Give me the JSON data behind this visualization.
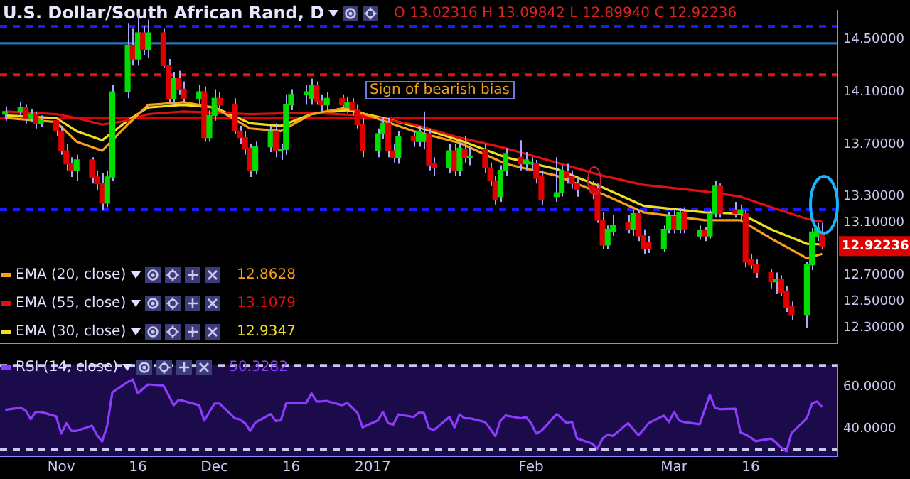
{
  "chart_data": [
    {
      "type": "candlestick",
      "title": "U.S. Dollar/South African Rand, D",
      "annotations": [
        "O 13.02316 H 13.09842 L 12.89940 C 12.92236",
        "Sign of bearish bias",
        "12.8628",
        "13.1079",
        "12.9347",
        {
          "text": "12.92236",
          "x": "2017-03-30",
          "y": 12.92236
        }
      ],
      "legend": "bottom left",
      "marker": "none",
      "tick_labels": "y",
      "x": [
        "2016-10-21",
        "2016-10-24",
        "2016-10-25",
        "2016-10-26",
        "2016-10-27",
        "2016-10-28",
        "2016-10-31",
        "2016-11-01",
        "2016-11-02",
        "2016-11-03",
        "2016-11-04",
        "2016-11-07",
        "2016-11-08",
        "2016-11-09",
        "2016-11-10",
        "2016-11-11",
        "2016-11-14",
        "2016-11-15",
        "2016-11-16",
        "2016-11-17",
        "2016-11-18",
        "2016-11-21",
        "2016-11-22",
        "2016-11-23",
        "2016-11-24",
        "2016-11-25",
        "2016-11-28",
        "2016-11-29",
        "2016-11-30",
        "2016-12-01",
        "2016-12-02",
        "2016-12-05",
        "2016-12-06",
        "2016-12-07",
        "2016-12-08",
        "2016-12-09",
        "2016-12-12",
        "2016-12-13",
        "2016-12-14",
        "2016-12-15",
        "2016-12-16",
        "2016-12-19",
        "2016-12-20",
        "2016-12-21",
        "2016-12-22",
        "2016-12-23",
        "2016-12-26",
        "2016-12-27",
        "2016-12-28",
        "2016-12-29",
        "2016-12-30",
        "2017-01-02",
        "2017-01-03",
        "2017-01-04",
        "2017-01-05",
        "2017-01-06",
        "2017-01-09",
        "2017-01-10",
        "2017-01-11",
        "2017-01-12",
        "2017-01-13",
        "2017-01-16",
        "2017-01-17",
        "2017-01-18",
        "2017-01-19",
        "2017-01-20",
        "2017-01-23",
        "2017-01-24",
        "2017-01-25",
        "2017-01-26",
        "2017-01-27",
        "2017-01-30",
        "2017-01-31",
        "2017-02-01",
        "2017-02-02",
        "2017-02-03",
        "2017-02-06",
        "2017-02-07",
        "2017-02-08",
        "2017-02-09",
        "2017-02-10",
        "2017-02-13",
        "2017-02-14",
        "2017-02-15",
        "2017-02-16",
        "2017-02-17",
        "2017-02-20",
        "2017-02-21",
        "2017-02-22",
        "2017-02-23",
        "2017-02-24",
        "2017-02-27",
        "2017-02-28",
        "2017-03-01",
        "2017-03-02",
        "2017-03-03",
        "2017-03-06",
        "2017-03-07",
        "2017-03-08",
        "2017-03-09",
        "2017-03-10",
        "2017-03-13",
        "2017-03-14",
        "2017-03-15",
        "2017-03-16",
        "2017-03-17",
        "2017-03-20",
        "2017-03-21",
        "2017-03-22",
        "2017-03-23",
        "2017-03-24",
        "2017-03-27",
        "2017-03-28",
        "2017-03-29",
        "2017-03-30"
      ],
      "ohlc": [
        [
          13.93,
          13.99,
          13.88,
          13.95
        ],
        [
          13.95,
          14.02,
          13.92,
          13.98
        ],
        [
          13.98,
          14.0,
          13.86,
          13.9
        ],
        [
          13.9,
          13.97,
          13.87,
          13.93
        ],
        [
          13.93,
          13.95,
          13.82,
          13.86
        ],
        [
          13.86,
          13.92,
          13.83,
          13.88
        ],
        [
          13.88,
          13.9,
          13.76,
          13.8
        ],
        [
          13.8,
          13.84,
          13.62,
          13.65
        ],
        [
          13.65,
          13.7,
          13.5,
          13.55
        ],
        [
          13.55,
          13.6,
          13.45,
          13.5
        ],
        [
          13.5,
          13.62,
          13.42,
          13.58
        ],
        [
          13.58,
          13.6,
          13.4,
          13.45
        ],
        [
          13.45,
          13.5,
          13.35,
          13.4
        ],
        [
          13.4,
          13.48,
          13.2,
          13.25
        ],
        [
          13.25,
          13.5,
          13.22,
          13.45
        ],
        [
          13.45,
          14.15,
          13.42,
          14.1
        ],
        [
          14.1,
          14.62,
          14.05,
          14.45
        ],
        [
          14.45,
          14.58,
          14.3,
          14.35
        ],
        [
          14.35,
          14.7,
          14.3,
          14.55
        ],
        [
          14.55,
          14.6,
          14.38,
          14.42
        ],
        [
          14.42,
          14.65,
          14.36,
          14.55
        ],
        [
          14.55,
          14.58,
          14.28,
          14.3
        ],
        [
          14.3,
          14.35,
          14.02,
          14.05
        ],
        [
          14.05,
          14.25,
          14.0,
          14.2
        ],
        [
          14.2,
          14.26,
          14.08,
          14.12
        ],
        [
          14.12,
          14.18,
          14.02,
          14.05
        ],
        [
          14.05,
          14.15,
          14.0,
          14.1
        ],
        [
          14.1,
          14.14,
          13.72,
          13.75
        ],
        [
          13.75,
          13.96,
          13.72,
          13.92
        ],
        [
          13.92,
          14.12,
          13.88,
          14.05
        ],
        [
          14.05,
          14.1,
          13.96,
          14.0
        ],
        [
          14.0,
          14.05,
          13.78,
          13.8
        ],
        [
          13.8,
          13.84,
          13.7,
          13.75
        ],
        [
          13.75,
          13.8,
          13.62,
          13.67
        ],
        [
          13.67,
          13.7,
          13.45,
          13.5
        ],
        [
          13.5,
          13.72,
          13.47,
          13.68
        ],
        [
          13.68,
          13.84,
          13.64,
          13.8
        ],
        [
          13.8,
          13.86,
          13.6,
          13.65
        ],
        [
          13.65,
          13.7,
          13.58,
          13.66
        ],
        [
          13.66,
          14.08,
          13.62,
          14.0
        ],
        [
          14.0,
          14.12,
          13.96,
          14.08
        ],
        [
          14.08,
          14.15,
          14.0,
          14.1
        ],
        [
          14.05,
          14.2,
          14.0,
          14.15
        ],
        [
          14.15,
          14.18,
          14.0,
          14.03
        ],
        [
          14.03,
          14.08,
          13.95,
          14.0
        ],
        [
          14.0,
          14.1,
          13.96,
          14.05
        ],
        [
          14.05,
          14.08,
          13.96,
          14.0
        ],
        [
          13.98,
          14.06,
          13.94,
          14.02
        ],
        [
          14.02,
          14.05,
          13.92,
          13.96
        ],
        [
          13.96,
          14.0,
          13.82,
          13.85
        ],
        [
          13.85,
          13.9,
          13.6,
          13.65
        ],
        [
          13.65,
          13.82,
          13.6,
          13.78
        ],
        [
          13.78,
          13.9,
          13.74,
          13.86
        ],
        [
          13.86,
          13.9,
          13.6,
          13.65
        ],
        [
          13.65,
          13.7,
          13.56,
          13.6
        ],
        [
          13.6,
          13.8,
          13.55,
          13.76
        ],
        [
          13.76,
          13.8,
          13.68,
          13.73
        ],
        [
          13.72,
          13.84,
          13.68,
          13.8
        ],
        [
          13.72,
          13.95,
          13.66,
          13.78
        ],
        [
          13.78,
          13.82,
          13.5,
          13.54
        ],
        [
          13.55,
          13.6,
          13.46,
          13.52
        ],
        [
          13.52,
          13.7,
          13.48,
          13.65
        ],
        [
          13.65,
          13.7,
          13.46,
          13.5
        ],
        [
          13.5,
          13.72,
          13.46,
          13.67
        ],
        [
          13.66,
          13.76,
          13.56,
          13.6
        ],
        [
          13.6,
          13.68,
          13.54,
          13.61
        ],
        [
          13.66,
          13.7,
          13.48,
          13.52
        ],
        [
          13.52,
          13.56,
          13.38,
          13.42
        ],
        [
          13.42,
          13.46,
          13.24,
          13.28
        ],
        [
          13.3,
          13.54,
          13.26,
          13.5
        ],
        [
          13.5,
          13.67,
          13.46,
          13.63
        ],
        [
          13.6,
          13.73,
          13.5,
          13.55
        ],
        [
          13.55,
          13.64,
          13.5,
          13.58
        ],
        [
          13.55,
          13.6,
          13.5,
          13.56
        ],
        [
          13.55,
          13.58,
          13.4,
          13.44
        ],
        [
          13.46,
          13.5,
          13.24,
          13.28
        ],
        [
          13.3,
          13.6,
          13.26,
          13.33
        ],
        [
          13.33,
          13.54,
          13.3,
          13.5
        ],
        [
          13.49,
          13.55,
          13.4,
          13.45
        ],
        [
          13.45,
          13.5,
          13.36,
          13.4
        ],
        [
          13.4,
          13.45,
          13.3,
          13.35
        ],
        [
          13.38,
          13.42,
          13.28,
          13.33
        ],
        [
          13.36,
          13.4,
          13.1,
          13.12
        ],
        [
          13.12,
          13.18,
          12.9,
          12.93
        ],
        [
          12.93,
          13.08,
          12.9,
          13.05
        ],
        [
          13.03,
          13.16,
          13.0,
          13.08
        ],
        [
          13.1,
          13.16,
          13.02,
          13.05
        ],
        [
          13.05,
          13.2,
          13.0,
          13.17
        ],
        [
          13.17,
          13.2,
          12.96,
          13.0
        ],
        [
          13.0,
          13.05,
          12.86,
          12.9
        ],
        [
          12.95,
          13.0,
          12.87,
          12.9
        ],
        [
          12.9,
          13.08,
          12.88,
          13.05
        ],
        [
          13.05,
          13.18,
          13.02,
          13.15
        ],
        [
          13.15,
          13.2,
          13.02,
          13.05
        ],
        [
          13.05,
          13.21,
          13.02,
          13.18
        ],
        [
          13.18,
          13.22,
          13.02,
          13.05
        ],
        [
          13.0,
          13.08,
          12.97,
          13.04
        ],
        [
          13.04,
          13.07,
          12.96,
          13.0
        ],
        [
          13.0,
          13.2,
          12.98,
          13.17
        ],
        [
          13.17,
          13.42,
          13.14,
          13.38
        ],
        [
          13.38,
          13.4,
          13.14,
          13.17
        ],
        [
          13.2,
          13.26,
          13.14,
          13.17
        ],
        [
          13.17,
          13.24,
          13.12,
          13.2
        ],
        [
          13.17,
          13.2,
          12.76,
          12.8
        ],
        [
          12.82,
          12.86,
          12.75,
          12.78
        ],
        [
          12.78,
          12.82,
          12.68,
          12.72
        ],
        [
          12.72,
          12.75,
          12.6,
          12.65
        ],
        [
          12.65,
          12.72,
          12.56,
          12.67
        ],
        [
          12.67,
          12.7,
          12.54,
          12.57
        ],
        [
          12.58,
          12.62,
          12.42,
          12.45
        ],
        [
          12.46,
          12.5,
          12.36,
          12.4
        ],
        [
          12.4,
          12.8,
          12.3,
          12.78
        ],
        [
          12.78,
          13.06,
          12.74,
          13.03
        ],
        [
          13.0,
          13.1,
          12.96,
          13.06
        ],
        [
          13.02316,
          13.09842,
          12.8994,
          12.92236
        ]
      ],
      "colors": [
        "#00dd00",
        "#00dd00",
        "#e00000",
        "#00dd00",
        "#e00000",
        "#00dd00",
        "#e00000",
        "#e00000",
        "#e00000",
        "#e00000",
        "#00dd00",
        "#e00000",
        "#e00000",
        "#e00000",
        "#00dd00",
        "#00dd00",
        "#00dd00",
        "#e00000",
        "#00dd00",
        "#e00000",
        "#00dd00",
        "#e00000",
        "#e00000",
        "#00dd00",
        "#e00000",
        "#e00000",
        "#00dd00",
        "#e00000",
        "#00dd00",
        "#00dd00",
        "#e00000",
        "#e00000",
        "#e00000",
        "#e00000",
        "#e00000",
        "#00dd00",
        "#00dd00",
        "#e00000",
        "#00dd00",
        "#00dd00",
        "#00dd00",
        "#00dd00",
        "#00dd00",
        "#e00000",
        "#e00000",
        "#00dd00",
        "#e00000",
        "#00dd00",
        "#e00000",
        "#e00000",
        "#e00000",
        "#00dd00",
        "#00dd00",
        "#e00000",
        "#e00000",
        "#00dd00",
        "#e00000",
        "#00dd00",
        "#00dd00",
        "#e00000",
        "#e00000",
        "#00dd00",
        "#e00000",
        "#00dd00",
        "#e00000",
        "#00dd00",
        "#e00000",
        "#e00000",
        "#e00000",
        "#00dd00",
        "#00dd00",
        "#e00000",
        "#00dd00",
        "#00dd00",
        "#e00000",
        "#e00000",
        "#00dd00",
        "#00dd00",
        "#e00000",
        "#e00000",
        "#e00000",
        "#e00000",
        "#e00000",
        "#e00000",
        "#00dd00",
        "#00dd00",
        "#e00000",
        "#00dd00",
        "#e00000",
        "#e00000",
        "#e00000",
        "#00dd00",
        "#00dd00",
        "#e00000",
        "#00dd00",
        "#e00000",
        "#00dd00",
        "#e00000",
        "#00dd00",
        "#00dd00",
        "#e00000",
        "#e00000",
        "#00dd00",
        "#e00000",
        "#e00000",
        "#e00000",
        "#e00000",
        "#00dd00",
        "#e00000",
        "#e00000",
        "#e00000",
        "#00dd00",
        "#00dd00",
        "#00dd00",
        "#e00000"
      ],
      "series": [
        {
          "name": "EMA (20, close)",
          "type": "line",
          "color": "#f5a01e",
          "x": [
            "2016-10-21",
            "2016-10-31",
            "2016-11-04",
            "2016-11-09",
            "2016-11-14",
            "2016-11-18",
            "2016-11-25",
            "2016-12-01",
            "2016-12-08",
            "2016-12-14",
            "2016-12-20",
            "2016-12-27",
            "2017-01-03",
            "2017-01-09",
            "2017-01-18",
            "2017-01-27",
            "2017-02-06",
            "2017-02-15",
            "2017-02-23",
            "2017-03-07",
            "2017-03-14",
            "2017-03-20",
            "2017-03-27",
            "2017-03-30"
          ],
          "values": [
            13.9,
            13.87,
            13.72,
            13.65,
            13.85,
            14.0,
            14.02,
            13.98,
            13.82,
            13.8,
            13.93,
            13.98,
            13.88,
            13.8,
            13.71,
            13.55,
            13.46,
            13.32,
            13.18,
            13.12,
            13.12,
            12.98,
            12.83,
            12.8628
          ]
        },
        {
          "name": "EMA (55, close)",
          "type": "line",
          "color": "#e01010",
          "x": [
            "2016-10-21",
            "2016-10-31",
            "2016-11-04",
            "2016-11-09",
            "2016-11-14",
            "2016-11-18",
            "2016-11-25",
            "2016-12-08",
            "2016-12-20",
            "2016-12-30",
            "2017-01-09",
            "2017-01-18",
            "2017-01-27",
            "2017-02-06",
            "2017-02-15",
            "2017-02-23",
            "2017-03-07",
            "2017-03-14",
            "2017-03-20",
            "2017-03-27",
            "2017-03-30"
          ],
          "values": [
            13.95,
            13.93,
            13.9,
            13.85,
            13.88,
            13.93,
            13.95,
            13.93,
            13.94,
            13.92,
            13.85,
            13.75,
            13.67,
            13.56,
            13.46,
            13.39,
            13.34,
            13.3,
            13.22,
            13.13,
            13.1079
          ]
        },
        {
          "name": "EMA (30, close)",
          "type": "line",
          "color": "#f0e020",
          "x": [
            "2016-10-21",
            "2016-10-31",
            "2016-11-04",
            "2016-11-09",
            "2016-11-14",
            "2016-11-18",
            "2016-11-25",
            "2016-12-01",
            "2016-12-08",
            "2016-12-14",
            "2016-12-20",
            "2016-12-27",
            "2017-01-03",
            "2017-01-09",
            "2017-01-18",
            "2017-01-27",
            "2017-02-06",
            "2017-02-15",
            "2017-02-23",
            "2017-03-07",
            "2017-03-14",
            "2017-03-20",
            "2017-03-27",
            "2017-03-30"
          ],
          "values": [
            13.92,
            13.9,
            13.8,
            13.73,
            13.88,
            13.98,
            14.0,
            13.98,
            13.86,
            13.84,
            13.93,
            13.96,
            13.9,
            13.84,
            13.73,
            13.6,
            13.51,
            13.37,
            13.23,
            13.18,
            13.17,
            13.05,
            12.94,
            12.9347
          ]
        }
      ],
      "ref_lines": [
        {
          "axis": "y",
          "value": 14.6,
          "color": "#1a1aff",
          "line_style": "dashed"
        },
        {
          "axis": "y",
          "value": 14.47,
          "color": "#1f78b4",
          "line_style": "solid"
        },
        {
          "axis": "y",
          "value": 14.23,
          "color": "#ee1111",
          "line_style": "dashed"
        },
        {
          "axis": "y",
          "value": 13.9,
          "color": "#dd0000",
          "line_style": "solid"
        },
        {
          "axis": "y",
          "value": 13.2,
          "color": "#1a1aff",
          "line_style": "dashed"
        }
      ],
      "xlim": [
        "2016-10-20",
        "2017-04-02"
      ],
      "ylim": [
        12.18,
        14.72
      ],
      "yticks": [
        {
          "value": 12.3,
          "label": "12.30000"
        },
        {
          "value": 12.5,
          "label": "12.50000"
        },
        {
          "value": 12.7,
          "label": "12.70000"
        },
        {
          "value": 13.1,
          "label": "13.10000"
        },
        {
          "value": 13.3,
          "label": "13.30000"
        },
        {
          "value": 13.7,
          "label": "13.70000"
        },
        {
          "value": 14.1,
          "label": "14.10000"
        },
        {
          "value": 14.5,
          "label": "14.50000"
        }
      ]
    },
    {
      "type": "line",
      "legend": "top left",
      "marker": "none",
      "x": [
        "2016-10-21",
        "2016-10-24",
        "2016-10-25",
        "2016-10-26",
        "2016-10-27",
        "2016-10-28",
        "2016-10-31",
        "2016-11-01",
        "2016-11-02",
        "2016-11-03",
        "2016-11-04",
        "2016-11-07",
        "2016-11-08",
        "2016-11-09",
        "2016-11-10",
        "2016-11-11",
        "2016-11-14",
        "2016-11-15",
        "2016-11-16",
        "2016-11-17",
        "2016-11-18",
        "2016-11-21",
        "2016-11-22",
        "2016-11-23",
        "2016-11-24",
        "2016-11-25",
        "2016-11-28",
        "2016-11-29",
        "2016-11-30",
        "2016-12-01",
        "2016-12-02",
        "2016-12-05",
        "2016-12-06",
        "2016-12-07",
        "2016-12-08",
        "2016-12-09",
        "2016-12-12",
        "2016-12-13",
        "2016-12-14",
        "2016-12-15",
        "2016-12-16",
        "2016-12-19",
        "2016-12-20",
        "2016-12-21",
        "2016-12-22",
        "2016-12-23",
        "2016-12-26",
        "2016-12-27",
        "2016-12-28",
        "2016-12-29",
        "2016-12-30",
        "2017-01-02",
        "2017-01-03",
        "2017-01-04",
        "2017-01-05",
        "2017-01-06",
        "2017-01-09",
        "2017-01-10",
        "2017-01-11",
        "2017-01-12",
        "2017-01-13",
        "2017-01-16",
        "2017-01-17",
        "2017-01-18",
        "2017-01-19",
        "2017-01-20",
        "2017-01-23",
        "2017-01-24",
        "2017-01-25",
        "2017-01-26",
        "2017-01-27",
        "2017-01-30",
        "2017-01-31",
        "2017-02-01",
        "2017-02-02",
        "2017-02-03",
        "2017-02-06",
        "2017-02-07",
        "2017-02-08",
        "2017-02-09",
        "2017-02-10",
        "2017-02-13",
        "2017-02-14",
        "2017-02-15",
        "2017-02-16",
        "2017-02-17",
        "2017-02-20",
        "2017-02-21",
        "2017-02-22",
        "2017-02-23",
        "2017-02-24",
        "2017-02-27",
        "2017-02-28",
        "2017-03-01",
        "2017-03-02",
        "2017-03-03",
        "2017-03-06",
        "2017-03-07",
        "2017-03-08",
        "2017-03-09",
        "2017-03-10",
        "2017-03-13",
        "2017-03-14",
        "2017-03-15",
        "2017-03-16",
        "2017-03-17",
        "2017-03-20",
        "2017-03-21",
        "2017-03-22",
        "2017-03-23",
        "2017-03-24",
        "2017-03-27",
        "2017-03-28",
        "2017-03-29",
        "2017-03-30"
      ],
      "series": [
        {
          "name": "RSI (14, close)",
          "color": "#8c3cff",
          "values": [
            49,
            50,
            48.8,
            44.6,
            48,
            48,
            45.9,
            37.8,
            42.7,
            39,
            39,
            41.5,
            37,
            34,
            41.5,
            57.3,
            62.2,
            63.4,
            56.8,
            59,
            61,
            60.5,
            56,
            51.2,
            53.7,
            53.2,
            51.2,
            43.9,
            48,
            52,
            52,
            45,
            44.4,
            42.7,
            39,
            43,
            47,
            43.7,
            44,
            52,
            52.3,
            52.4,
            56.8,
            53,
            53,
            53.2,
            51.2,
            52.4,
            50,
            47.6,
            40.7,
            44,
            48,
            42.7,
            42,
            46.8,
            45.6,
            47.6,
            47.6,
            40.2,
            39.5,
            45.6,
            40.7,
            46.8,
            45,
            45,
            43.2,
            40,
            36.6,
            43.9,
            46.3,
            45,
            45.6,
            42.7,
            37.8,
            39,
            47,
            45,
            42.7,
            43.4,
            35.4,
            33,
            30.5,
            35.4,
            37.3,
            36.6,
            42.7,
            39.8,
            37,
            39.5,
            42.7,
            46.3,
            43.2,
            48,
            43.9,
            43.2,
            42.2,
            49,
            56.1,
            50,
            49.3,
            49.5,
            38.3,
            37.3,
            35.9,
            34.1,
            35.4,
            33.4,
            31,
            29.3,
            38,
            45,
            52,
            53,
            50.3282
          ]
        }
      ],
      "annotations": [
        "50.3282"
      ],
      "ref_lines": [
        {
          "axis": "y",
          "value": 70,
          "color": "#c8c8f0",
          "line_style": "dashed"
        },
        {
          "axis": "y",
          "value": 30,
          "color": "#c8c8f0",
          "line_style": "dashed"
        }
      ],
      "xlim": [
        "2016-10-20",
        "2017-04-02"
      ],
      "xticks": [
        {
          "value": "2016-11-01",
          "label": "Nov"
        },
        {
          "value": "2016-11-16",
          "label": "16"
        },
        {
          "value": "2016-12-01",
          "label": "Dec"
        },
        {
          "value": "2016-12-16",
          "label": "16"
        },
        {
          "value": "2017-01-01",
          "label": "2017"
        },
        {
          "value": "2017-02-01",
          "label": "Feb"
        },
        {
          "value": "2017-03-01",
          "label": "Mar"
        },
        {
          "value": "2017-03-16",
          "label": "16"
        }
      ],
      "ylim": [
        27,
        70.5
      ],
      "yticks": [
        {
          "value": 40,
          "label": "40.0000"
        },
        {
          "value": 60,
          "label": "60.0000"
        }
      ]
    }
  ]
}
